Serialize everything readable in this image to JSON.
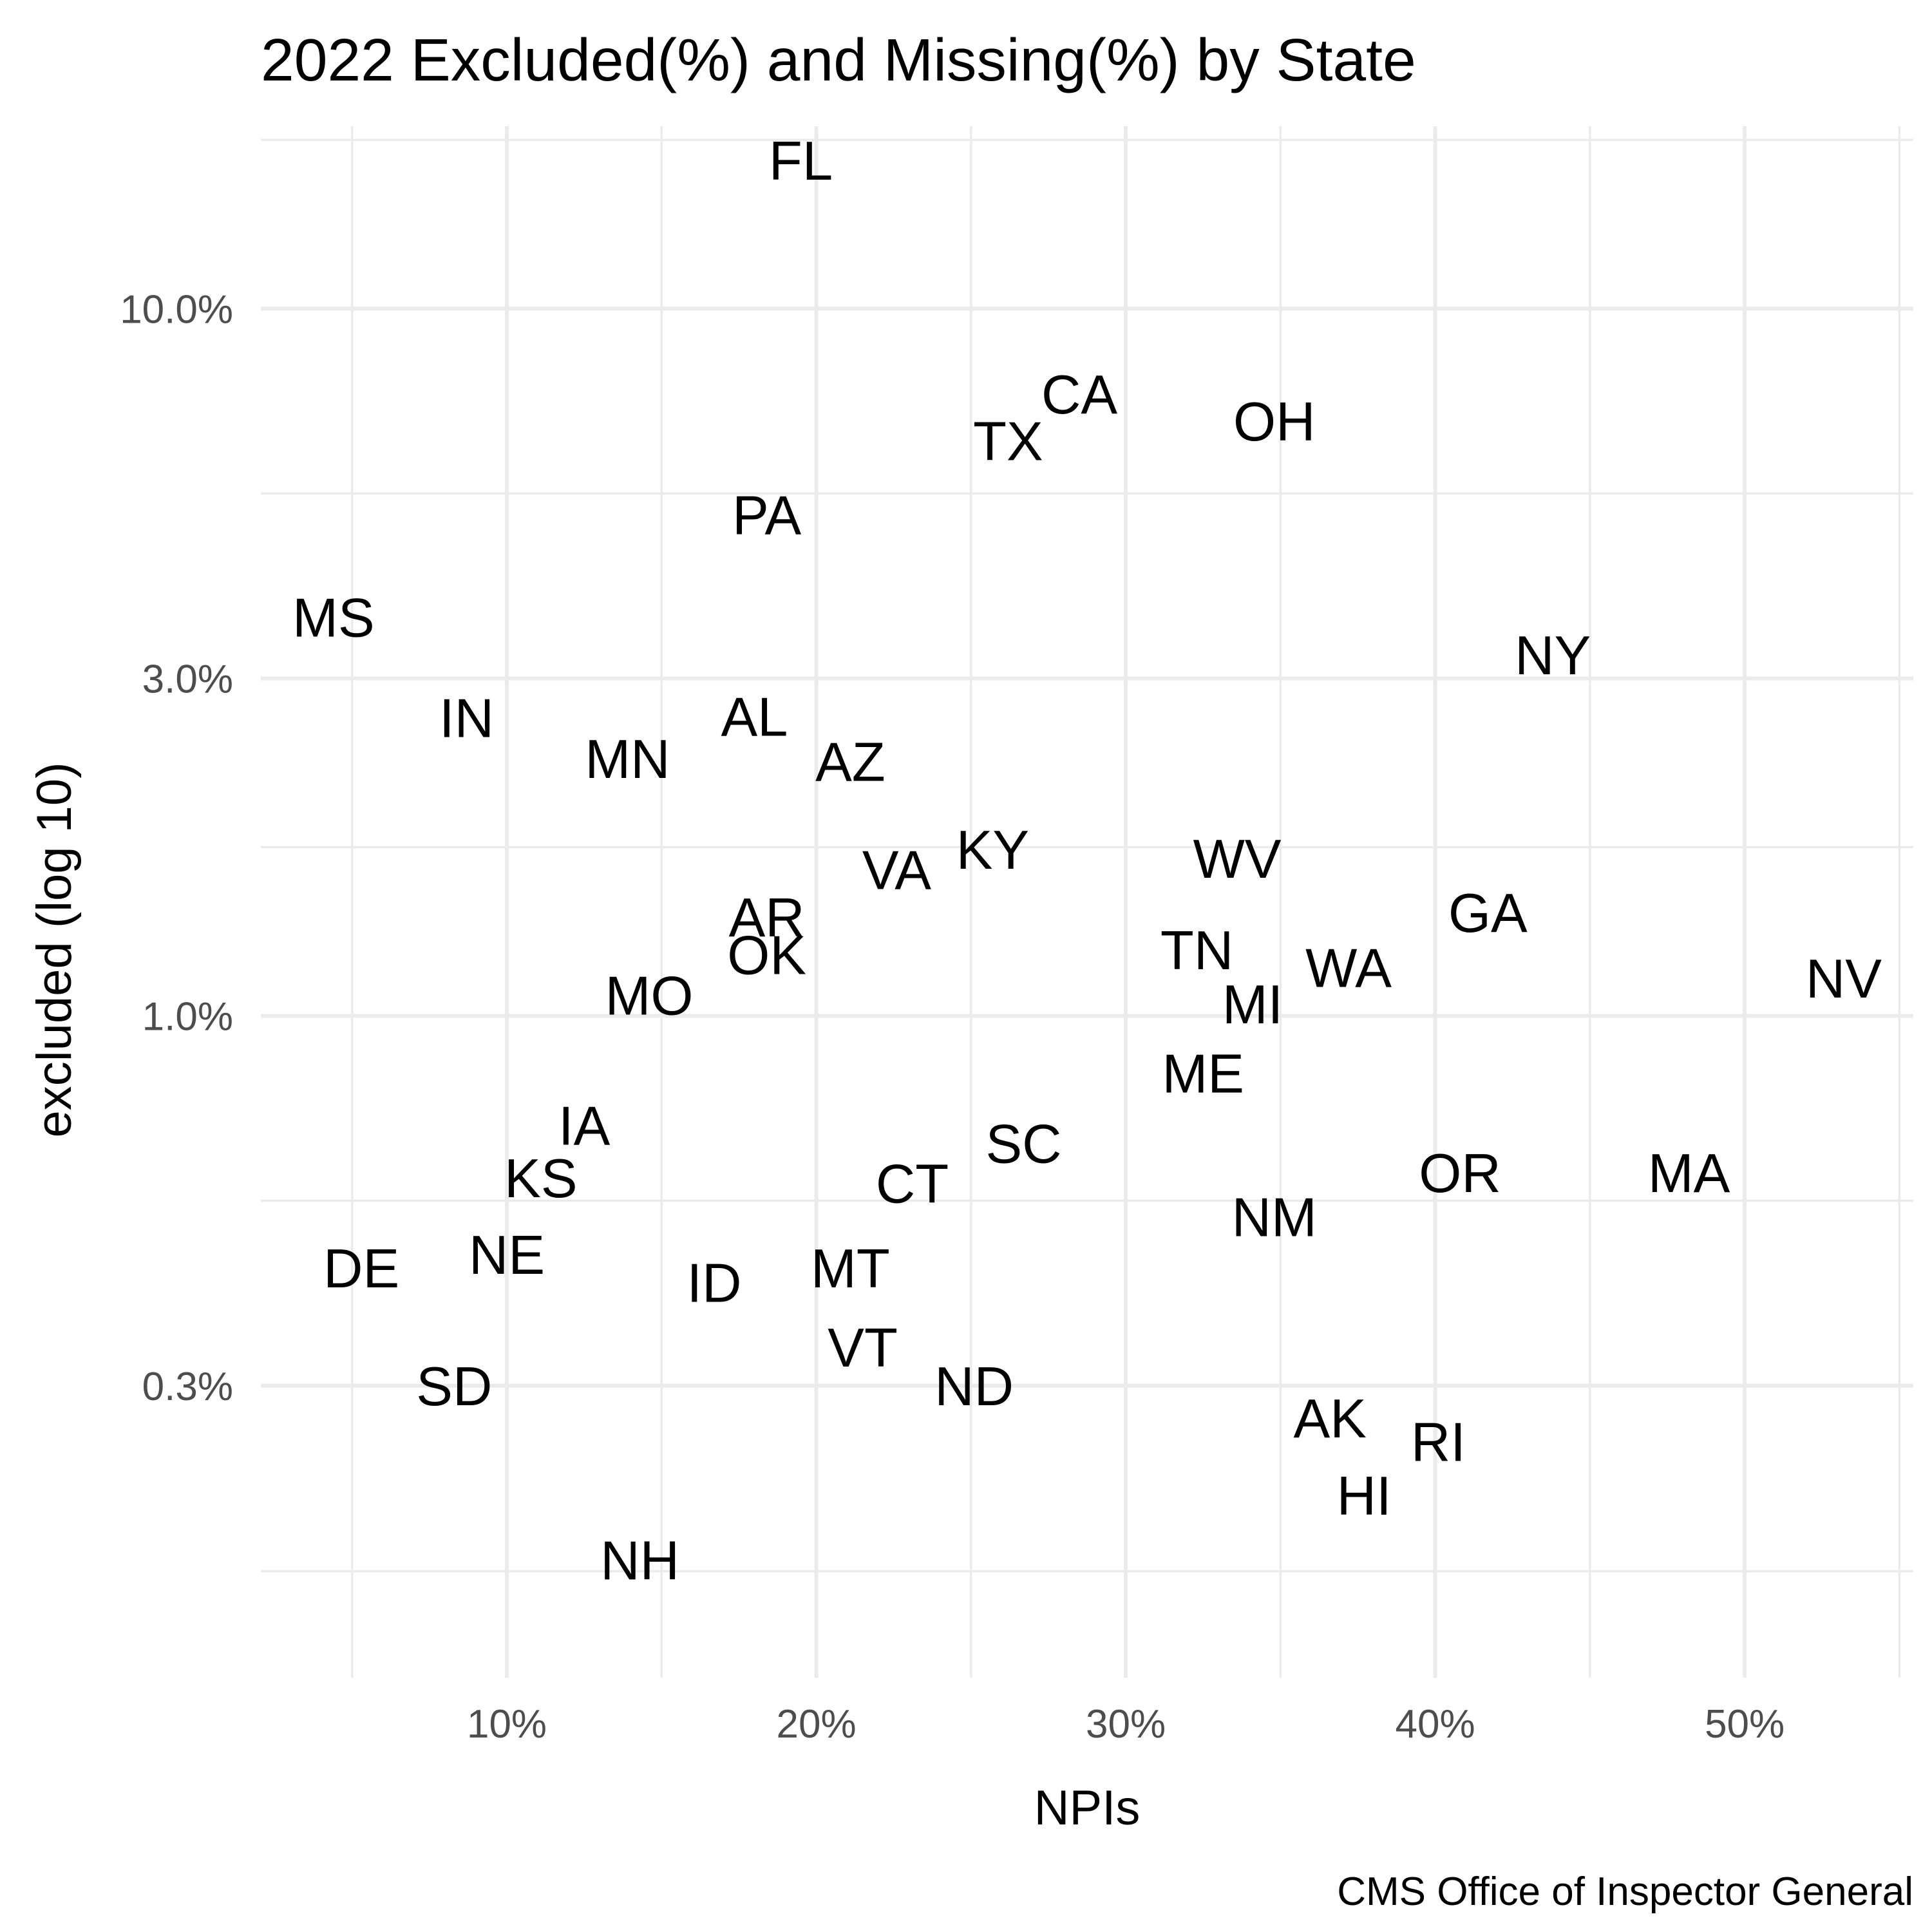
{
  "chart_data": {
    "type": "scatter",
    "title": "2022 Excluded(%) and Missing(%) by State",
    "xlabel": "NPIs",
    "ylabel": "excluded (log 10)",
    "caption": "CMS Office of Inspector General",
    "x_scale": "linear",
    "y_scale": "log10",
    "xlim": [
      0.0205,
      0.5545
    ],
    "ylim": [
      0.00116,
      0.1811
    ],
    "x_ticks": [
      {
        "value": 0.1,
        "label": "10%"
      },
      {
        "value": 0.2,
        "label": "20%"
      },
      {
        "value": 0.3,
        "label": "30%"
      },
      {
        "value": 0.4,
        "label": "40%"
      },
      {
        "value": 0.5,
        "label": "50%"
      }
    ],
    "x_minor_ticks": [
      0.05,
      0.15,
      0.25,
      0.35,
      0.45,
      0.55
    ],
    "y_ticks": [
      {
        "value": 0.003,
        "label": "0.3%"
      },
      {
        "value": 0.01,
        "label": "1.0%"
      },
      {
        "value": 0.03,
        "label": "3.0%"
      },
      {
        "value": 0.1,
        "label": "10.0%"
      }
    ],
    "y_minor_ticks": [
      0.00164,
      0.00548,
      0.01732,
      0.05477,
      0.1732
    ],
    "grid": true,
    "marker": "text-label",
    "points": [
      {
        "label": "FL",
        "x": 0.195,
        "y": 0.162
      },
      {
        "label": "CA",
        "x": 0.285,
        "y": 0.0757
      },
      {
        "label": "OH",
        "x": 0.348,
        "y": 0.0693
      },
      {
        "label": "TX",
        "x": 0.262,
        "y": 0.065
      },
      {
        "label": "PA",
        "x": 0.184,
        "y": 0.0511
      },
      {
        "label": "MS",
        "x": 0.044,
        "y": 0.0366
      },
      {
        "label": "NY",
        "x": 0.438,
        "y": 0.0324
      },
      {
        "label": "IN",
        "x": 0.087,
        "y": 0.0264
      },
      {
        "label": "AL",
        "x": 0.18,
        "y": 0.0265
      },
      {
        "label": "MN",
        "x": 0.139,
        "y": 0.0231
      },
      {
        "label": "AZ",
        "x": 0.211,
        "y": 0.0229
      },
      {
        "label": "KY",
        "x": 0.257,
        "y": 0.0172
      },
      {
        "label": "WV",
        "x": 0.336,
        "y": 0.0167
      },
      {
        "label": "VA",
        "x": 0.226,
        "y": 0.0161
      },
      {
        "label": "GA",
        "x": 0.417,
        "y": 0.014
      },
      {
        "label": "AR",
        "x": 0.184,
        "y": 0.0138
      },
      {
        "label": "TN",
        "x": 0.323,
        "y": 0.0124
      },
      {
        "label": "OK",
        "x": 0.184,
        "y": 0.0122
      },
      {
        "label": "WA",
        "x": 0.372,
        "y": 0.0117
      },
      {
        "label": "NV",
        "x": 0.532,
        "y": 0.0113
      },
      {
        "label": "MO",
        "x": 0.146,
        "y": 0.0107
      },
      {
        "label": "MI",
        "x": 0.341,
        "y": 0.0104
      },
      {
        "label": "ME",
        "x": 0.325,
        "y": 0.0083
      },
      {
        "label": "IA",
        "x": 0.125,
        "y": 0.007
      },
      {
        "label": "SC",
        "x": 0.267,
        "y": 0.0066
      },
      {
        "label": "KS",
        "x": 0.111,
        "y": 0.0059
      },
      {
        "label": "OR",
        "x": 0.408,
        "y": 0.006
      },
      {
        "label": "MA",
        "x": 0.482,
        "y": 0.006
      },
      {
        "label": "CT",
        "x": 0.231,
        "y": 0.0058
      },
      {
        "label": "NM",
        "x": 0.348,
        "y": 0.0052
      },
      {
        "label": "NE",
        "x": 0.1,
        "y": 0.0046
      },
      {
        "label": "DE",
        "x": 0.053,
        "y": 0.0044
      },
      {
        "label": "MT",
        "x": 0.211,
        "y": 0.0044
      },
      {
        "label": "ID",
        "x": 0.167,
        "y": 0.0042
      },
      {
        "label": "VT",
        "x": 0.215,
        "y": 0.0034
      },
      {
        "label": "SD",
        "x": 0.083,
        "y": 0.003
      },
      {
        "label": "ND",
        "x": 0.251,
        "y": 0.003
      },
      {
        "label": "AK",
        "x": 0.366,
        "y": 0.0027
      },
      {
        "label": "RI",
        "x": 0.401,
        "y": 0.0025
      },
      {
        "label": "HI",
        "x": 0.377,
        "y": 0.0021
      },
      {
        "label": "NH",
        "x": 0.143,
        "y": 0.0017
      }
    ]
  }
}
